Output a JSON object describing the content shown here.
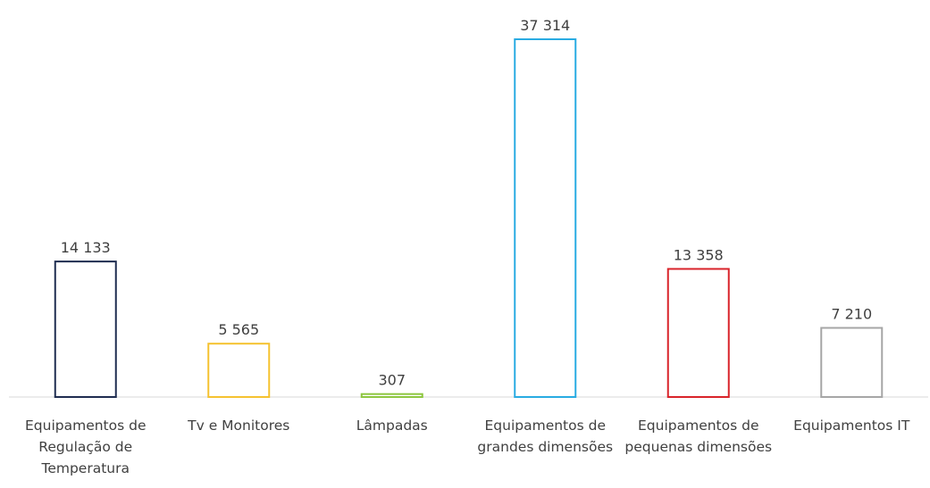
{
  "chart_data": {
    "type": "bar",
    "categories": [
      "Equipamentos de Regulação de Temperatura",
      "Tv e Monitores",
      "Lâmpadas",
      "Equipamentos de grandes dimensões",
      "Equipamentos de pequenas dimensões",
      "Equipamentos IT"
    ],
    "values": [
      14133,
      5565,
      307,
      37314,
      13358,
      7210
    ],
    "value_labels": [
      "14 133",
      "5 565",
      "307",
      "37 314",
      "13 358",
      "7 210"
    ],
    "colors": [
      "#1f2d50",
      "#f5c230",
      "#8dc63f",
      "#29abe2",
      "#d9232a",
      "#a6a6a6"
    ],
    "fill": "none"
  }
}
